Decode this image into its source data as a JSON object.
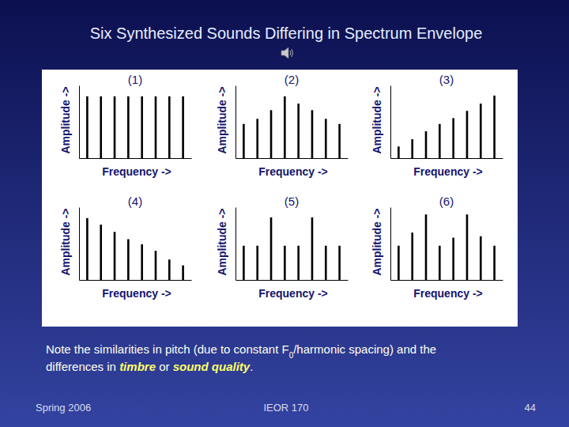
{
  "slide": {
    "title": "Six Synthesized Sounds Differing in Spectrum Envelope",
    "caption": [
      [
        {
          "text": "Note the similarities in pitch (due to constant F"
        },
        {
          "text": "0",
          "format": "subscript"
        },
        {
          "text": "/harmonic spacing) and the"
        }
      ],
      [
        {
          "text": "differences in "
        },
        {
          "text": "timbre",
          "format": "bold-italic"
        },
        {
          "text": " or "
        },
        {
          "text": "sound quality",
          "format": "bold-italic"
        },
        {
          "text": "."
        }
      ]
    ],
    "footer": {
      "left": "Spring 2006",
      "center": "IEOR 170",
      "right": "44"
    }
  },
  "chart_data": [
    {
      "type": "bar",
      "title": "(1)",
      "x_label": "Frequency ->",
      "y_label": "Amplitude ->",
      "categories": [
        null,
        null,
        null,
        null,
        null,
        null,
        null,
        null
      ],
      "values": [
        8.5,
        8.5,
        8.5,
        8.5,
        8.5,
        8.5,
        8.5,
        8.5
      ],
      "color": "#000000",
      "ylim": [
        0,
        10
      ],
      "yticks": [],
      "tick_labels": false
    },
    {
      "type": "bar",
      "title": "(2)",
      "x_label": "Frequency ->",
      "y_label": "Amplitude ->",
      "categories": [
        null,
        null,
        null,
        null,
        null,
        null,
        null,
        null
      ],
      "values": [
        4.7,
        5.4,
        6.6,
        8.5,
        7.5,
        6.6,
        5.4,
        4.7
      ],
      "color": "#000000",
      "ylim": [
        0,
        10
      ],
      "yticks": [],
      "tick_labels": false
    },
    {
      "type": "bar",
      "title": "(3)",
      "x_label": "Frequency ->",
      "y_label": "Amplitude ->",
      "categories": [
        null,
        null,
        null,
        null,
        null,
        null,
        null,
        null
      ],
      "values": [
        1.6,
        2.6,
        3.7,
        4.7,
        5.5,
        6.5,
        7.5,
        8.6
      ],
      "color": "#000000",
      "ylim": [
        0,
        10
      ],
      "yticks": [],
      "tick_labels": false
    },
    {
      "type": "bar",
      "title": "(4)",
      "x_label": "Frequency ->",
      "y_label": "Amplitude ->",
      "categories": [
        null,
        null,
        null,
        null,
        null,
        null,
        null,
        null
      ],
      "values": [
        8.5,
        7.6,
        6.6,
        5.6,
        4.9,
        4.0,
        2.8,
        2.0
      ],
      "color": "#000000",
      "ylim": [
        0,
        10
      ],
      "yticks": [],
      "tick_labels": false
    },
    {
      "type": "bar",
      "title": "(5)",
      "x_label": "Frequency ->",
      "y_label": "Amplitude ->",
      "categories": [
        null,
        null,
        null,
        null,
        null,
        null,
        null,
        null
      ],
      "values": [
        4.7,
        4.7,
        8.6,
        4.7,
        4.7,
        8.6,
        4.7,
        4.7
      ],
      "color": "#000000",
      "ylim": [
        0,
        10
      ],
      "yticks": [],
      "tick_labels": false
    },
    {
      "type": "bar",
      "title": "(6)",
      "x_label": "Frequency ->",
      "y_label": "Amplitude ->",
      "categories": [
        null,
        null,
        null,
        null,
        null,
        null,
        null,
        null
      ],
      "values": [
        4.7,
        6.5,
        9.0,
        4.7,
        5.8,
        9.0,
        6.0,
        4.7
      ],
      "color": "#000000",
      "ylim": [
        0,
        10
      ],
      "yticks": [],
      "tick_labels": false
    }
  ]
}
